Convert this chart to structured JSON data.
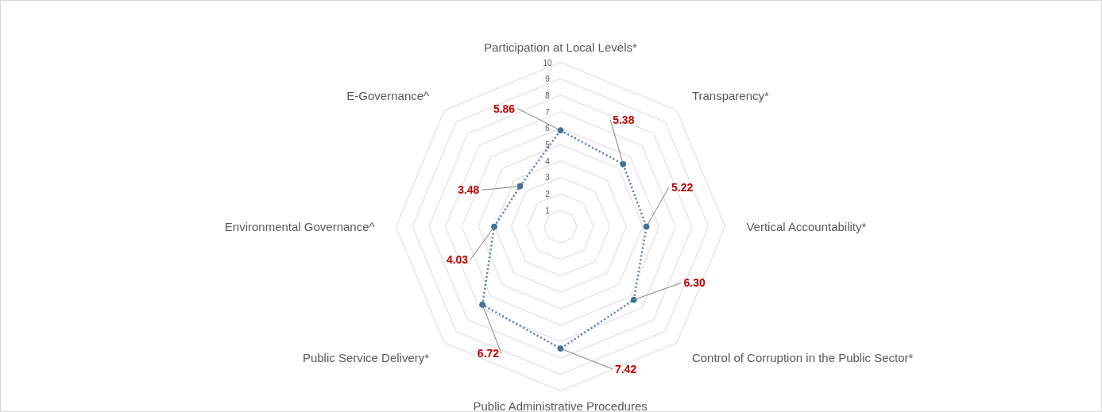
{
  "chart_data": {
    "type": "radar",
    "categories": [
      "Participation at Local Levels*",
      "Transparency*",
      "Vertical Accountability*",
      "Control of Corruption in the Public Sector*",
      "Public Administrative Procedures",
      "Public Service Delivery*",
      "Environmental Governance^",
      "E-Governance^"
    ],
    "series": [
      {
        "color": "#4a7ebb",
        "values": [
          5.86,
          5.38,
          5.22,
          6.3,
          7.42,
          6.72,
          4.03,
          3.48
        ],
        "value_labels": [
          "5.86",
          "5.38",
          "5.22",
          "6.30",
          "7.42",
          "6.72",
          "4.03",
          "3.48"
        ]
      }
    ],
    "ylim": [
      0,
      10
    ],
    "yticks": [
      1,
      2,
      3,
      4,
      5,
      6,
      7,
      8,
      9,
      10
    ],
    "grid": true,
    "marker": "circle",
    "line_style": "dotted"
  }
}
